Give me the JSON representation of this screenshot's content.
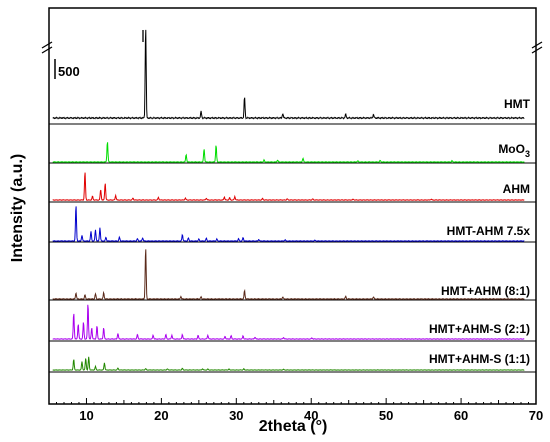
{
  "chart_data": {
    "type": "line",
    "xlabel": "2theta (°)",
    "ylabel": "Intensity (a.u.)",
    "xlim": [
      5,
      70
    ],
    "xticks": [
      10,
      20,
      30,
      40,
      50,
      60,
      70
    ],
    "scale_bar_label": "500",
    "grid": false,
    "legend": "labels placed at right of each trace",
    "series": [
      {
        "name": "HMT",
        "color": "#000000",
        "baseline": 0,
        "peaks": [
          [
            17.9,
            1.0
          ],
          [
            25.3,
            0.07
          ],
          [
            31.1,
            0.23
          ],
          [
            36.2,
            0.05
          ],
          [
            44.6,
            0.04
          ],
          [
            48.3,
            0.04
          ]
        ]
      },
      {
        "name": "MoO3",
        "name_sub": "3",
        "color": "#00dd00",
        "baseline": 0,
        "peaks": [
          [
            12.8,
            0.55
          ],
          [
            23.3,
            0.2
          ],
          [
            25.7,
            0.35
          ],
          [
            27.3,
            0.45
          ],
          [
            33.7,
            0.05
          ],
          [
            35.5,
            0.05
          ],
          [
            38.9,
            0.1
          ],
          [
            46.2,
            0.03
          ],
          [
            49.2,
            0.04
          ],
          [
            58.8,
            0.03
          ]
        ]
      },
      {
        "name": "AHM",
        "color": "#e00000",
        "baseline": 0,
        "peaks": [
          [
            9.8,
            0.75
          ],
          [
            10.8,
            0.1
          ],
          [
            11.9,
            0.28
          ],
          [
            12.5,
            0.45
          ],
          [
            13.9,
            0.12
          ],
          [
            16.2,
            0.05
          ],
          [
            19.6,
            0.07
          ],
          [
            23.2,
            0.05
          ],
          [
            26.0,
            0.05
          ],
          [
            28.4,
            0.08
          ],
          [
            29.1,
            0.06
          ],
          [
            29.8,
            0.09
          ],
          [
            33.5,
            0.04
          ],
          [
            36.8,
            0.03
          ],
          [
            40.2,
            0.03
          ],
          [
            45.6,
            0.02
          ],
          [
            56.0,
            0.02
          ]
        ]
      },
      {
        "name": "HMT-AHM 7.5x",
        "color": "#0000cc",
        "baseline": 0,
        "peaks": [
          [
            8.6,
            0.95
          ],
          [
            9.4,
            0.15
          ],
          [
            10.6,
            0.25
          ],
          [
            11.2,
            0.3
          ],
          [
            11.8,
            0.35
          ],
          [
            12.6,
            0.1
          ],
          [
            14.4,
            0.1
          ],
          [
            16.8,
            0.06
          ],
          [
            17.5,
            0.08
          ],
          [
            22.8,
            0.17
          ],
          [
            23.6,
            0.08
          ],
          [
            25.0,
            0.05
          ],
          [
            26.0,
            0.07
          ],
          [
            27.4,
            0.05
          ],
          [
            30.3,
            0.06
          ],
          [
            30.9,
            0.09
          ],
          [
            33.0,
            0.04
          ],
          [
            36.5,
            0.03
          ],
          [
            40.5,
            0.02
          ]
        ]
      },
      {
        "name": "HMT+AHM (8:1)",
        "color": "#5a2a1a",
        "baseline": 0,
        "peaks": [
          [
            8.6,
            0.12
          ],
          [
            9.8,
            0.08
          ],
          [
            11.2,
            0.1
          ],
          [
            12.3,
            0.12
          ],
          [
            17.9,
            1.0
          ],
          [
            22.6,
            0.05
          ],
          [
            25.3,
            0.04
          ],
          [
            31.1,
            0.16
          ],
          [
            36.2,
            0.04
          ],
          [
            44.6,
            0.05
          ],
          [
            48.3,
            0.04
          ]
        ]
      },
      {
        "name": "HMT+AHM-S (2:1)",
        "color": "#aa00ee",
        "baseline": 0,
        "peaks": [
          [
            8.3,
            0.7
          ],
          [
            8.9,
            0.4
          ],
          [
            9.6,
            0.45
          ],
          [
            10.2,
            0.95
          ],
          [
            10.7,
            0.3
          ],
          [
            11.4,
            0.35
          ],
          [
            12.3,
            0.3
          ],
          [
            14.2,
            0.15
          ],
          [
            16.8,
            0.12
          ],
          [
            18.9,
            0.1
          ],
          [
            20.6,
            0.12
          ],
          [
            21.4,
            0.1
          ],
          [
            22.8,
            0.12
          ],
          [
            24.9,
            0.1
          ],
          [
            26.2,
            0.1
          ],
          [
            28.5,
            0.07
          ],
          [
            29.3,
            0.09
          ],
          [
            30.9,
            0.08
          ],
          [
            32.5,
            0.05
          ],
          [
            36.3,
            0.04
          ],
          [
            40.1,
            0.03
          ]
        ]
      },
      {
        "name": "HMT+AHM-S (1:1)",
        "color": "#228800",
        "baseline": 0,
        "peaks": [
          [
            8.3,
            0.45
          ],
          [
            9.4,
            0.35
          ],
          [
            9.9,
            0.5
          ],
          [
            10.3,
            0.55
          ],
          [
            11.2,
            0.15
          ],
          [
            12.4,
            0.3
          ],
          [
            14.2,
            0.08
          ],
          [
            17.9,
            0.06
          ],
          [
            20.8,
            0.05
          ],
          [
            22.8,
            0.07
          ],
          [
            25.5,
            0.05
          ],
          [
            26.2,
            0.04
          ],
          [
            29.0,
            0.04
          ],
          [
            31.0,
            0.05
          ],
          [
            36.3,
            0.03
          ]
        ]
      }
    ]
  }
}
